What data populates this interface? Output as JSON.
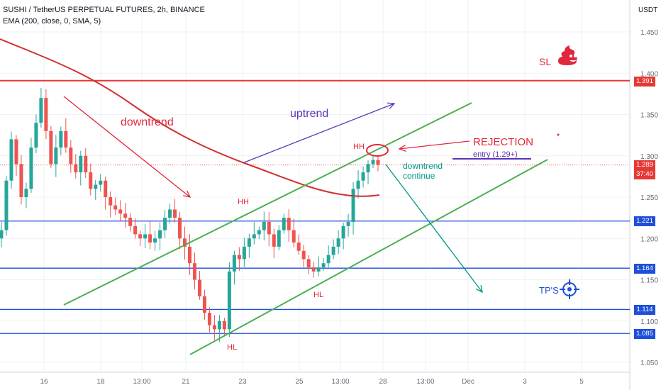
{
  "header": {
    "title": "SUSHI / TetherUS PERPETUAL FUTURES, 2h, BINANCE",
    "indicator": "EMA (200, close, 0, SMA, 5)",
    "currency": "USDT"
  },
  "colors": {
    "up": "#26a69a",
    "down": "#ef5350",
    "ema": "#d32f2f",
    "level_blue": "#1e4fd8",
    "level_red": "#e53935",
    "channel": "#4caf50",
    "annot_red": "#e0283c",
    "annot_purple": "#5b34b8",
    "annot_teal": "#009688"
  },
  "chart_data": {
    "type": "candlestick",
    "title": "SUSHI / TetherUS PERPETUAL FUTURES, 2h, BINANCE",
    "y_axis": {
      "ticks": [
        "1.450",
        "1.400",
        "1.350",
        "1.300",
        "1.250",
        "1.200",
        "1.150",
        "1.100",
        "1.050"
      ],
      "range": [
        1.035,
        1.48
      ]
    },
    "x_axis": {
      "ticks": [
        "16",
        "18",
        "13:00",
        "21",
        "23",
        "25",
        "13:00",
        "28",
        "13:00",
        "Dec",
        "3",
        "5"
      ]
    },
    "price_labels": [
      {
        "value": "1.391",
        "color": "#e53935"
      },
      {
        "value": "1.289",
        "color": "#e53935"
      },
      {
        "value": "37:40",
        "color": "#e53935"
      },
      {
        "value": "1.221",
        "color": "#1e4fd8"
      },
      {
        "value": "1.164",
        "color": "#1e4fd8"
      },
      {
        "value": "1.114",
        "color": "#1e4fd8"
      },
      {
        "value": "1.085",
        "color": "#1e4fd8"
      }
    ],
    "horizontal_levels": [
      {
        "price": 1.391,
        "color": "#e53935"
      },
      {
        "price": 1.221,
        "color": "#1e4fd8"
      },
      {
        "price": 1.164,
        "color": "#1e4fd8"
      },
      {
        "price": 1.114,
        "color": "#1e4fd8"
      },
      {
        "price": 1.085,
        "color": "#1e4fd8"
      }
    ],
    "close_path": [
      1.21,
      1.27,
      1.32,
      1.29,
      1.25,
      1.26,
      1.31,
      1.34,
      1.37,
      1.33,
      1.29,
      1.31,
      1.33,
      1.31,
      1.29,
      1.28,
      1.3,
      1.28,
      1.26,
      1.265,
      1.27,
      1.25,
      1.24,
      1.235,
      1.23,
      1.225,
      1.215,
      1.205,
      1.2,
      1.205,
      1.195,
      1.2,
      1.21,
      1.225,
      1.235,
      1.225,
      1.2,
      1.19,
      1.17,
      1.15,
      1.13,
      1.11,
      1.095,
      1.09,
      1.1,
      1.09,
      1.16,
      1.18,
      1.175,
      1.19,
      1.2,
      1.205,
      1.21,
      1.22,
      1.205,
      1.19,
      1.21,
      1.225,
      1.21,
      1.195,
      1.185,
      1.175,
      1.165,
      1.16,
      1.165,
      1.17,
      1.18,
      1.19,
      1.2,
      1.215,
      1.22,
      1.26,
      1.27,
      1.28,
      1.29,
      1.295,
      1.289
    ],
    "annotations": [
      "downtrend",
      "uptrend",
      "HH",
      "HH",
      "HL",
      "HL",
      "REJECTION",
      "entry (1.29+)",
      "downtrend",
      "continue",
      "SL",
      "TP'S"
    ]
  }
}
